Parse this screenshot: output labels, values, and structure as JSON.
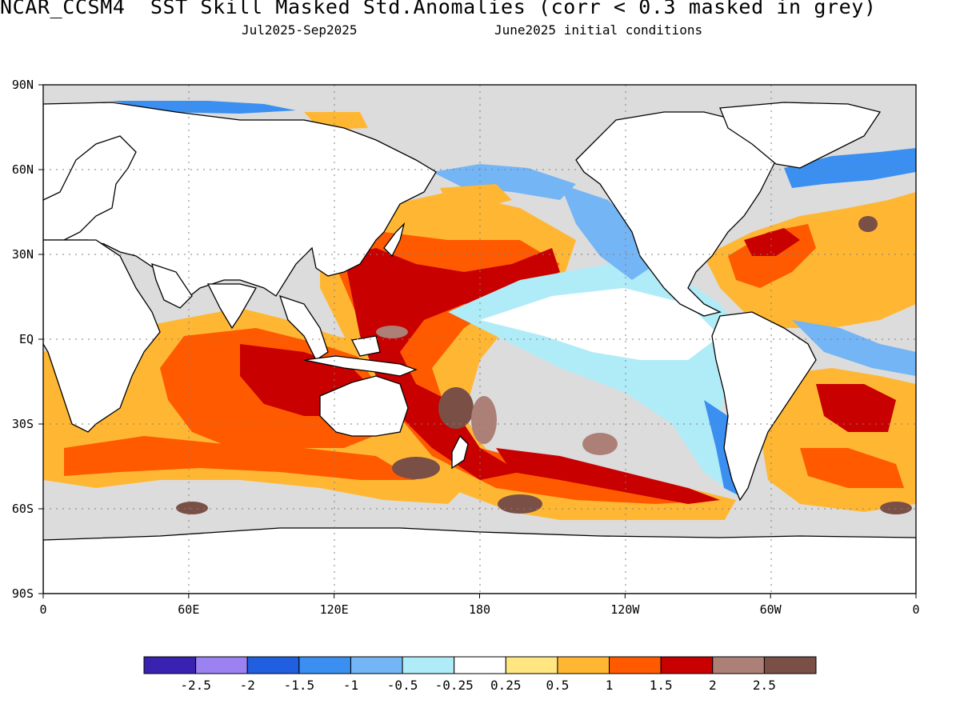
{
  "header": {
    "title": "NCAR_CCSM4  SST Skill Masked Std.Anomalies (corr < 0.3 masked in grey)",
    "period": "Jul2025-Sep2025",
    "init": "June2025 initial conditions"
  },
  "map": {
    "lat_labels": [
      "90N",
      "60N",
      "30N",
      "EQ",
      "30S",
      "60S",
      "90S"
    ],
    "lon_labels": [
      "0",
      "60E",
      "120E",
      "180",
      "120W",
      "60W",
      "0"
    ],
    "mask_color": "#dcdcdc",
    "land_color": "#ffffff"
  },
  "colorbar": {
    "labels": [
      "-2.5",
      "-2",
      "-1.5",
      "-1",
      "-0.5",
      "-0.25",
      "0.25",
      "0.5",
      "1",
      "1.5",
      "2",
      "2.5"
    ],
    "colors": [
      "#3a22b0",
      "#9b82f0",
      "#1f5fe0",
      "#3a8ff0",
      "#74b5f5",
      "#b0ecf7",
      "#ffffff",
      "#ffe680",
      "#ffb733",
      "#ff5a00",
      "#c80000",
      "#ad8077",
      "#7a4f46"
    ]
  }
}
